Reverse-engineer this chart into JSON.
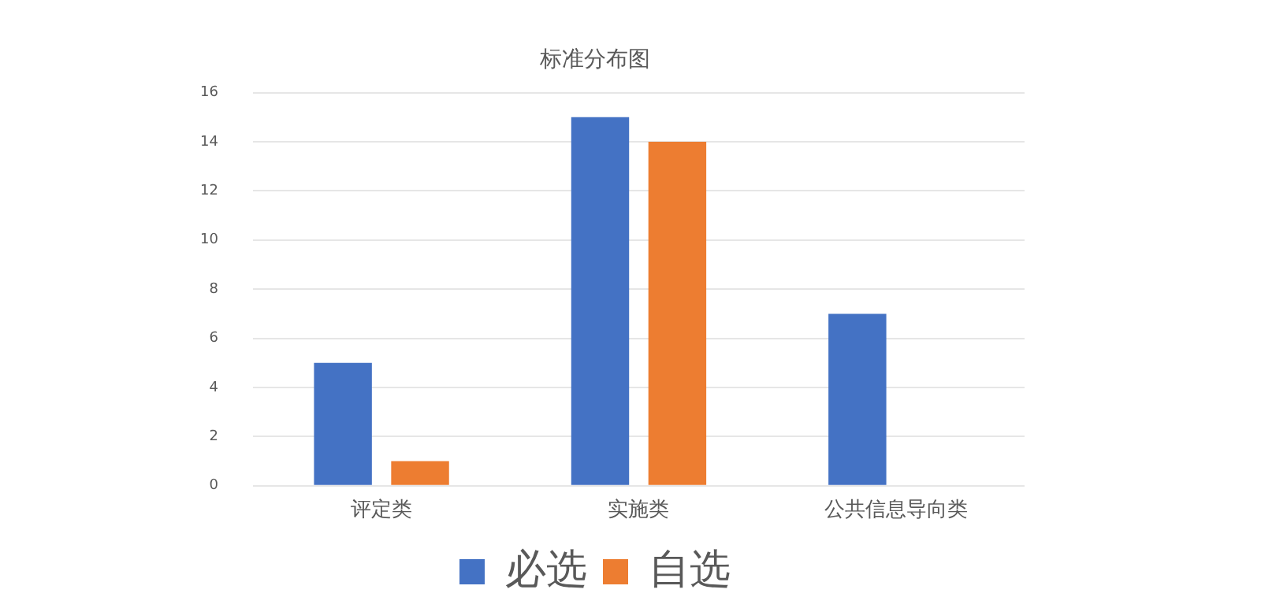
{
  "chart_data": {
    "type": "bar",
    "title": "标准分布图",
    "categories": [
      "评定类",
      "实施类",
      "公共信息导向类"
    ],
    "series": [
      {
        "name": "必选",
        "color": "#4472c4",
        "values": [
          5,
          15,
          7
        ]
      },
      {
        "name": "自选",
        "color": "#ed7d31",
        "values": [
          1,
          14,
          0
        ]
      }
    ],
    "ylim": [
      0,
      16
    ],
    "yticks": [
      0,
      2,
      4,
      6,
      8,
      10,
      12,
      14,
      16
    ],
    "grid": "y",
    "legend": "bottom"
  }
}
